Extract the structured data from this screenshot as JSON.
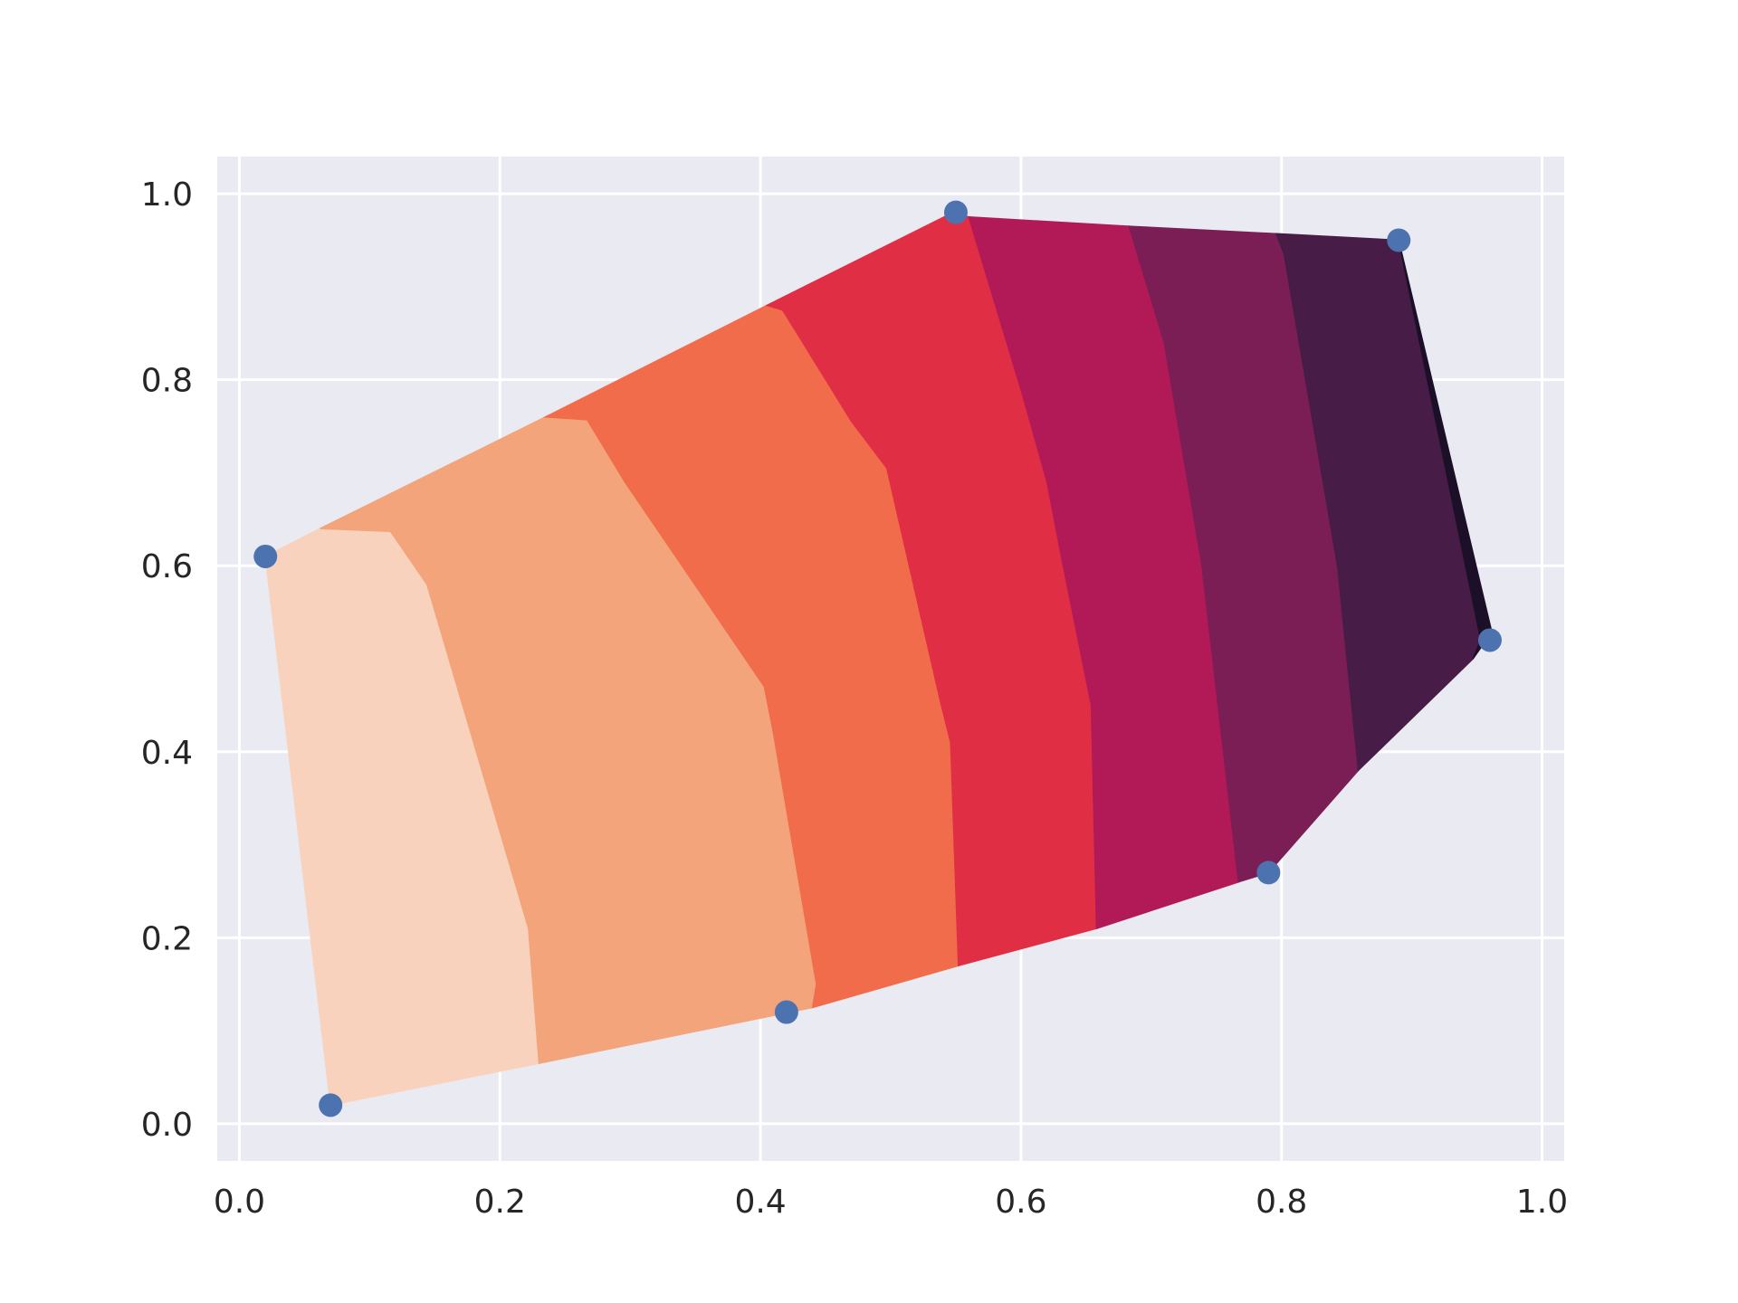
{
  "chart_data": {
    "type": "contour",
    "title": "",
    "xlabel": "",
    "ylabel": "",
    "xlim": [
      -0.017,
      1.017
    ],
    "ylim": [
      -0.04,
      1.04
    ],
    "grid": true,
    "background_color": "#eaeaf2",
    "x_ticks": [
      "0.0",
      "0.2",
      "0.4",
      "0.6",
      "0.8",
      "1.0"
    ],
    "y_ticks": [
      "0.0",
      "0.2",
      "0.4",
      "0.6",
      "0.8",
      "1.0"
    ],
    "x_tick_values": [
      0.0,
      0.2,
      0.4,
      0.6,
      0.8,
      1.0
    ],
    "y_tick_values": [
      0.0,
      0.2,
      0.4,
      0.6,
      0.8,
      1.0
    ],
    "scatter": {
      "color": "#4c72b0",
      "points": [
        {
          "x": 0.02,
          "y": 0.61
        },
        {
          "x": 0.07,
          "y": 0.02
        },
        {
          "x": 0.42,
          "y": 0.12
        },
        {
          "x": 0.55,
          "y": 0.98
        },
        {
          "x": 0.79,
          "y": 0.27
        },
        {
          "x": 0.89,
          "y": 0.95
        },
        {
          "x": 0.96,
          "y": 0.52
        }
      ]
    },
    "filled_levels": [
      {
        "color": "#f8d2bc",
        "polygon": [
          [
            0.02,
            0.61
          ],
          [
            0.062,
            0.64
          ],
          [
            0.116,
            0.637
          ],
          [
            0.144,
            0.58
          ],
          [
            0.222,
            0.21
          ],
          [
            0.23,
            0.065
          ],
          [
            0.07,
            0.02
          ]
        ]
      },
      {
        "color": "#f3a47b",
        "polygon": [
          [
            0.062,
            0.64
          ],
          [
            0.235,
            0.76
          ],
          [
            0.267,
            0.757
          ],
          [
            0.296,
            0.69
          ],
          [
            0.403,
            0.47
          ],
          [
            0.41,
            0.42
          ],
          [
            0.443,
            0.15
          ],
          [
            0.44,
            0.125
          ],
          [
            0.23,
            0.065
          ],
          [
            0.222,
            0.21
          ],
          [
            0.144,
            0.58
          ],
          [
            0.116,
            0.637
          ]
        ]
      },
      {
        "color": "#f06c4b",
        "polygon": [
          [
            0.235,
            0.76
          ],
          [
            0.405,
            0.88
          ],
          [
            0.417,
            0.875
          ],
          [
            0.47,
            0.755
          ],
          [
            0.497,
            0.705
          ],
          [
            0.538,
            0.455
          ],
          [
            0.546,
            0.41
          ],
          [
            0.552,
            0.17
          ],
          [
            0.44,
            0.125
          ],
          [
            0.443,
            0.15
          ],
          [
            0.41,
            0.42
          ],
          [
            0.403,
            0.47
          ],
          [
            0.296,
            0.69
          ],
          [
            0.267,
            0.757
          ]
        ]
      },
      {
        "color": "#e02f45",
        "polygon": [
          [
            0.405,
            0.88
          ],
          [
            0.548,
            0.98
          ],
          [
            0.56,
            0.975
          ],
          [
            0.601,
            0.785
          ],
          [
            0.62,
            0.69
          ],
          [
            0.631,
            0.61
          ],
          [
            0.654,
            0.45
          ],
          [
            0.658,
            0.21
          ],
          [
            0.552,
            0.17
          ],
          [
            0.546,
            0.41
          ],
          [
            0.538,
            0.455
          ],
          [
            0.497,
            0.705
          ],
          [
            0.47,
            0.755
          ],
          [
            0.417,
            0.875
          ]
        ]
      },
      {
        "color": "#b11a57",
        "polygon": [
          [
            0.56,
            0.975
          ],
          [
            0.683,
            0.965
          ],
          [
            0.71,
            0.84
          ],
          [
            0.739,
            0.6
          ],
          [
            0.767,
            0.26
          ],
          [
            0.658,
            0.21
          ],
          [
            0.654,
            0.45
          ],
          [
            0.631,
            0.61
          ],
          [
            0.62,
            0.69
          ],
          [
            0.601,
            0.785
          ]
        ]
      },
      {
        "color": "#7a1e55",
        "polygon": [
          [
            0.683,
            0.965
          ],
          [
            0.796,
            0.957
          ],
          [
            0.802,
            0.935
          ],
          [
            0.843,
            0.6
          ],
          [
            0.859,
            0.38
          ],
          [
            0.79,
            0.27
          ],
          [
            0.767,
            0.26
          ],
          [
            0.739,
            0.6
          ],
          [
            0.71,
            0.84
          ]
        ]
      },
      {
        "color": "#471c46",
        "polygon": [
          [
            0.796,
            0.957
          ],
          [
            0.89,
            0.95
          ],
          [
            0.953,
            0.52
          ],
          [
            0.947,
            0.5
          ],
          [
            0.859,
            0.38
          ],
          [
            0.843,
            0.6
          ],
          [
            0.802,
            0.935
          ]
        ]
      },
      {
        "color": "#1c0f28",
        "polygon": [
          [
            0.89,
            0.95
          ],
          [
            0.962,
            0.525
          ],
          [
            0.957,
            0.52
          ],
          [
            0.947,
            0.5
          ],
          [
            0.953,
            0.52
          ]
        ]
      }
    ]
  }
}
